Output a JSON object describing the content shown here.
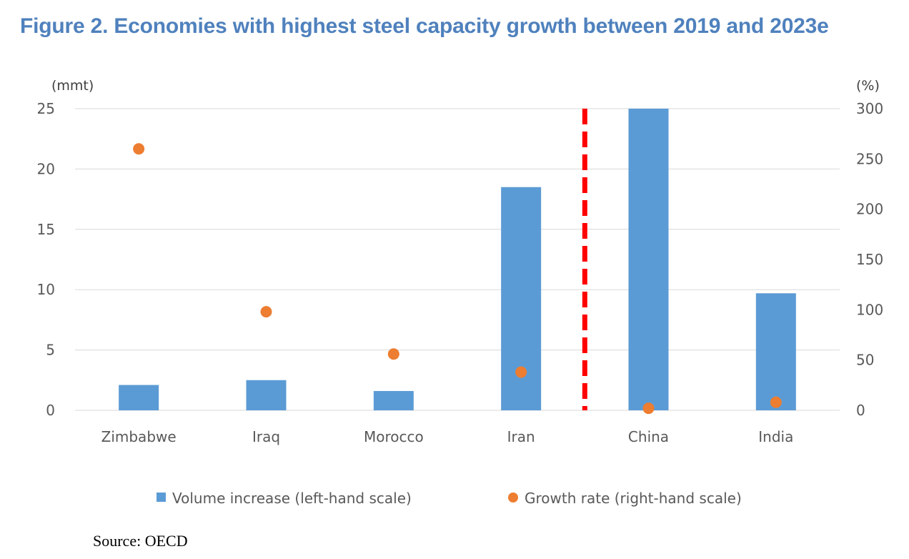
{
  "figure": {
    "title": "Figure  2. Economies with highest steel capacity growth between 2019 and 2023e",
    "source": "Source: OECD"
  },
  "chart_data": {
    "type": "bar",
    "categories": [
      "Zimbabwe",
      "Iraq",
      "Morocco",
      "Iran",
      "China",
      "India"
    ],
    "series": [
      {
        "name": "Volume increase (left-hand scale)",
        "type": "bar",
        "axis": "left",
        "color": "#5b9bd5",
        "values": [
          2.1,
          2.5,
          1.6,
          18.5,
          25,
          9.7
        ]
      },
      {
        "name": "Growth rate (right-hand scale)",
        "type": "scatter",
        "axis": "right",
        "color": "#ed7d31",
        "values": [
          260,
          98,
          56,
          38,
          2,
          8
        ]
      }
    ],
    "y_left": {
      "unit": "(mmt)",
      "ylim": [
        0,
        25
      ],
      "ticks": [
        "0",
        "5",
        "10",
        "15",
        "20",
        "25"
      ]
    },
    "y_right": {
      "unit": "(%)",
      "ylim": [
        0,
        300
      ],
      "ticks": [
        "0",
        "50",
        "100",
        "150",
        "200",
        "250",
        "300"
      ]
    },
    "separator": {
      "after_category": "Iran",
      "color": "#ff0000",
      "style": "dashed"
    },
    "grid": true,
    "legend_position": "bottom"
  }
}
